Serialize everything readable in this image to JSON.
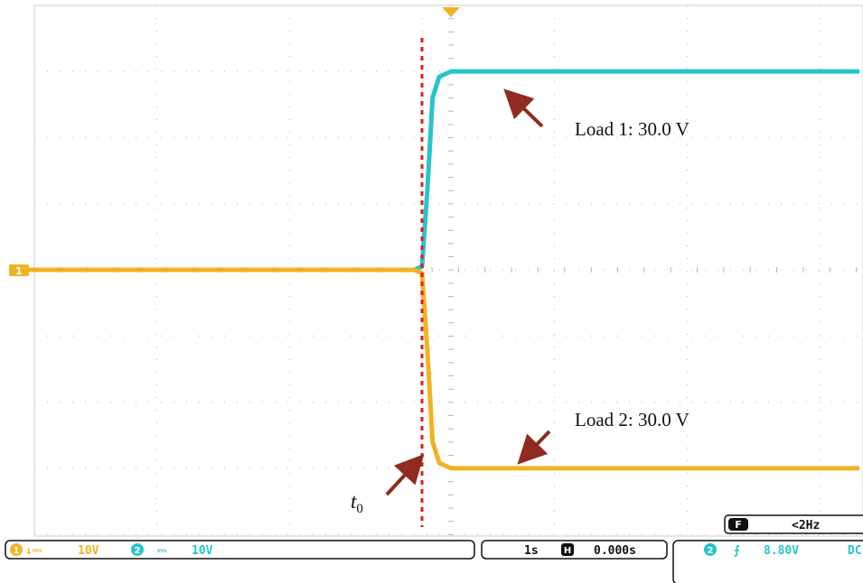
{
  "chart_data": {
    "type": "line",
    "title": "",
    "xlabel": "",
    "ylabel": "",
    "x_unit": "s",
    "y_unit": "V",
    "time_per_div_s": 1,
    "volts_per_div": 10,
    "xlim": [
      -3.1,
      3.3
    ],
    "ylim": [
      -40,
      30
    ],
    "grid": true,
    "series": [
      {
        "color": "#28c4cc",
        "points": [
          [
            -3.1,
            0
          ],
          [
            -0.06,
            0
          ],
          [
            0.0,
            0.5
          ],
          [
            0.04,
            12
          ],
          [
            0.08,
            26
          ],
          [
            0.13,
            29.2
          ],
          [
            0.22,
            30
          ],
          [
            3.3,
            30
          ]
        ]
      },
      {
        "color": "#f0b323",
        "points": [
          [
            -3.1,
            0
          ],
          [
            -0.06,
            0
          ],
          [
            0.0,
            -0.5
          ],
          [
            0.04,
            -12
          ],
          [
            0.08,
            -26
          ],
          [
            0.13,
            -29.2
          ],
          [
            0.22,
            -30
          ],
          [
            3.3,
            -30
          ]
        ]
      }
    ],
    "annotations": {
      "load1": "Load 1: 30.0 V",
      "load2": "Load 2: 30.0 V",
      "t0_base": "t",
      "t0_sub": "0"
    },
    "t0_marker_x": 0
  },
  "status_bar": {
    "ch1_badge": "1",
    "ch1_coupling": "↓⎓",
    "ch1_scale": "10V",
    "ch2_badge": "2",
    "ch2_coupling": "⎓",
    "ch2_scale": "10V",
    "timebase": "1s",
    "position_icon": "H",
    "position": "0.000s",
    "trigger_source": "2",
    "trigger_edge": "⨍",
    "trigger_level": "8.80V",
    "trigger_coupling": "DC",
    "freq_badge": "F",
    "frequency": "<2Hz"
  },
  "ground_marker": "1",
  "colors": {
    "ch1": "#f0b323",
    "ch2": "#28c4cc",
    "marker": "#e11b1b",
    "arrow": "#8f2b20",
    "grid": "#b5b5b5"
  }
}
